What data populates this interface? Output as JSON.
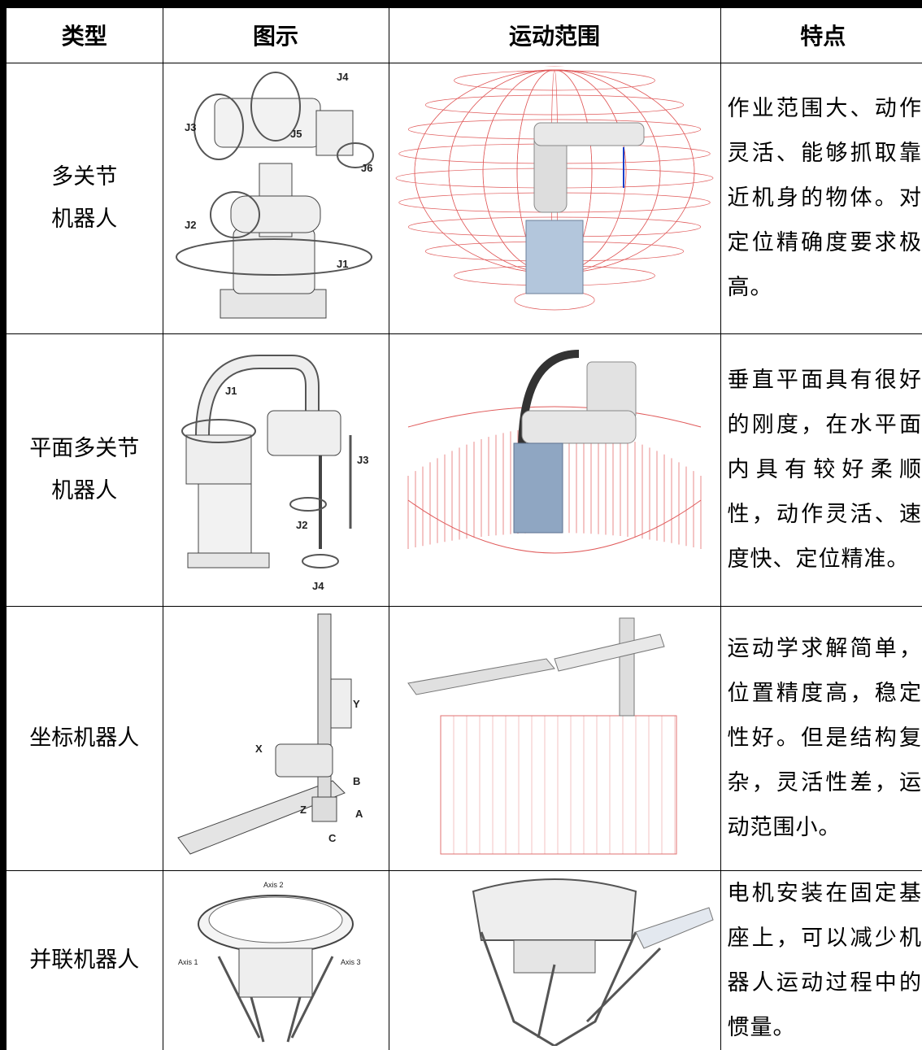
{
  "table": {
    "header": [
      "类型",
      "图示",
      "运动范围",
      "特点"
    ],
    "rows": [
      {
        "type": [
          "多关节",
          "机器人"
        ],
        "figure_labels": [
          "J4",
          "J3",
          "J5",
          "J6",
          "J2",
          "J1"
        ],
        "features": "作业范围大、动作灵活、能够抓取靠近机身的物体。对定位精确度要求极高。"
      },
      {
        "type": [
          "平面多关节",
          "机器人"
        ],
        "figure_labels": [
          "J1",
          "J3",
          "J2",
          "J4"
        ],
        "features": "垂直平面具有很好的刚度，在水平面内具有较好柔顺性，动作灵活、速度快、定位精准。"
      },
      {
        "type": [
          "坐标机器人"
        ],
        "figure_labels": [
          "Y",
          "X",
          "B",
          "Z",
          "A",
          "C"
        ],
        "features": "运动学求解简单，位置精度高，稳定性好。但是结构复杂，灵活性差，运动范围小。"
      },
      {
        "type": [
          "并联机器人"
        ],
        "figure_labels": [
          "Axis 2",
          "Axis 1",
          "Axis 3"
        ],
        "features": "电机安装在固定基座上，可以减少机器人运动过程中的惯量。"
      }
    ]
  }
}
